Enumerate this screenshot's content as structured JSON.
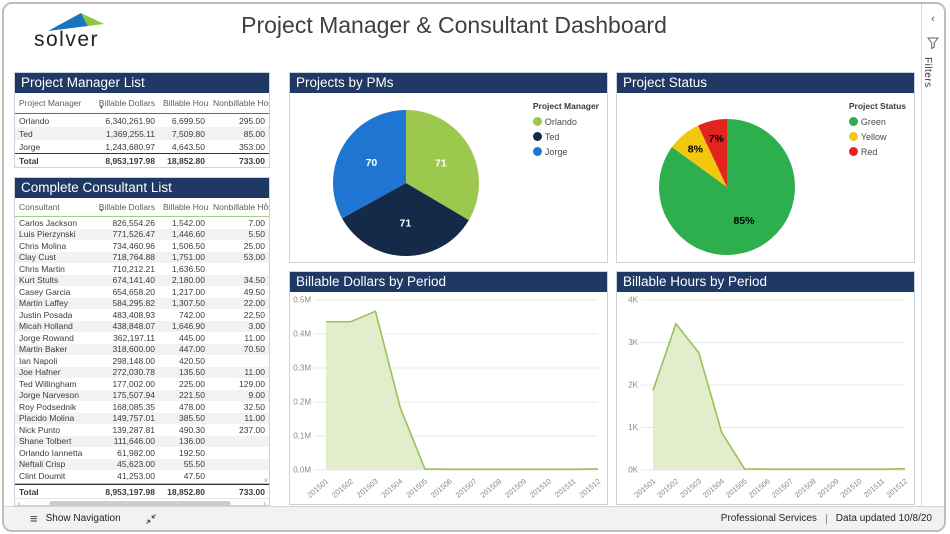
{
  "header": {
    "logo_text": "solver",
    "title": "Project Manager & Consultant Dashboard",
    "logo_colors": {
      "blue": "#1B75BC",
      "green": "#8DC63F"
    }
  },
  "icons": {
    "sort_desc": "▼",
    "scroll_up": "∧",
    "scroll_down": "∨",
    "scroll_left": "‹",
    "scroll_right": "›",
    "hamburger": "≡",
    "chevron_left": "‹"
  },
  "pm_list": {
    "title": "Project Manager List",
    "columns": [
      "Project Manager",
      "Billable Dollars",
      "Billable Hours",
      "Nonbillable Hours"
    ],
    "sort_column_index": 1,
    "rows": [
      [
        "Orlando",
        "6,340,261.90",
        "6,699.50",
        "295.00"
      ],
      [
        "Ted",
        "1,369,255.11",
        "7,509.80",
        "85.00"
      ],
      [
        "Jorge",
        "1,243,680.97",
        "4,643.50",
        "353.00"
      ]
    ],
    "total_row": [
      "Total",
      "8,953,197.98",
      "18,852.80",
      "733.00"
    ]
  },
  "consultant_list": {
    "title": "Complete Consultant List",
    "columns": [
      "Consultant",
      "Billable Dollars",
      "Billable Hours",
      "Nonbillable Hours"
    ],
    "sort_column_index": 1,
    "rows": [
      [
        "Carlos Jackson",
        "826,554.26",
        "1,542.00",
        "7.00"
      ],
      [
        "Luis Pierzynski",
        "771,526.47",
        "1,446.60",
        "5.50"
      ],
      [
        "Chris Molina",
        "734,460.96",
        "1,506.50",
        "25.00"
      ],
      [
        "Clay Cust",
        "718,764.88",
        "1,751.00",
        "53.00"
      ],
      [
        "Chris Martin",
        "710,212.21",
        "1,636.50",
        ""
      ],
      [
        "Kurt Stults",
        "674,141.40",
        "2,180.00",
        "34.50"
      ],
      [
        "Casey Garcia",
        "654,658.20",
        "1,217.00",
        "49.50"
      ],
      [
        "Martin Laffey",
        "584,295.82",
        "1,307.50",
        "22.00"
      ],
      [
        "Justin Posada",
        "483,408.93",
        "742.00",
        "22.50"
      ],
      [
        "Micah Holland",
        "438,848.07",
        "1,646.90",
        "3.00"
      ],
      [
        "Jorge Rowand",
        "362,197.11",
        "445.00",
        "11.00"
      ],
      [
        "Martin Baker",
        "318,600.00",
        "447.00",
        "70.50"
      ],
      [
        "Ian Napoli",
        "298,148.00",
        "420.50",
        ""
      ],
      [
        "Joe Hafner",
        "272,030.78",
        "135.50",
        "11.00"
      ],
      [
        "Ted Willingham",
        "177,002.00",
        "225.00",
        "129.00"
      ],
      [
        "Jorge Narveson",
        "175,507.94",
        "221.50",
        "9.00"
      ],
      [
        "Roy Podsednik",
        "168,085.35",
        "478.00",
        "32.50"
      ],
      [
        "Placido Molina",
        "149,757.01",
        "385.50",
        "11.00"
      ],
      [
        "Nick Punto",
        "139,287.81",
        "490.30",
        "237.00"
      ],
      [
        "Shane Tolbert",
        "111,646.00",
        "136.00",
        ""
      ],
      [
        "Orlando Iannetta",
        "61,982.00",
        "192.50",
        ""
      ],
      [
        "Neftali Crisp",
        "45,623.00",
        "55.50",
        ""
      ],
      [
        "Clint Doumit",
        "41,253.00",
        "47.50",
        ""
      ]
    ],
    "total_row": [
      "Total",
      "8,953,197.98",
      "18,852.80",
      "733.00"
    ]
  },
  "chart_data": [
    {
      "id": "projects_by_pms",
      "type": "pie",
      "title": "Projects by PMs",
      "legend_title": "Project Manager",
      "legend_position": "top-right",
      "label_color": "#ffffff",
      "slices": [
        {
          "name": "Orlando",
          "value": 71,
          "label": "71",
          "color": "#9DC84E"
        },
        {
          "name": "Ted",
          "value": 71,
          "label": "71",
          "color": "#152949"
        },
        {
          "name": "Jorge",
          "value": 70,
          "label": "70",
          "color": "#1E76D2"
        }
      ]
    },
    {
      "id": "project_status",
      "type": "pie",
      "title": "Project Status",
      "legend_title": "Project Status",
      "legend_position": "top-right",
      "label_color": "#000000",
      "slices": [
        {
          "name": "Green",
          "value": 85,
          "label": "85%",
          "color": "#2EAF4D"
        },
        {
          "name": "Yellow",
          "value": 8,
          "label": "8%",
          "color": "#F2C80F"
        },
        {
          "name": "Red",
          "value": 7,
          "label": "7%",
          "color": "#E2231E"
        }
      ]
    },
    {
      "id": "billable_dollars_by_period",
      "type": "area",
      "title": "Billable Dollars by Period",
      "categories": [
        "201501",
        "201502",
        "201503",
        "201504",
        "201505",
        "201506",
        "201507",
        "201508",
        "201509",
        "201510",
        "201511",
        "201512"
      ],
      "values": [
        436000,
        436000,
        467000,
        184000,
        3000,
        2000,
        2000,
        2000,
        2000,
        2000,
        2000,
        3000
      ],
      "ylim": [
        0,
        500000
      ],
      "ytick_values": [
        0,
        100000,
        200000,
        300000,
        400000,
        500000
      ],
      "ytick_labels": [
        "0.0M",
        "0.1M",
        "0.2M",
        "0.3M",
        "0.4M",
        "0.5M"
      ],
      "grid": true,
      "line_color": "#9CC158",
      "fill_color": "#DCEAC2"
    },
    {
      "id": "billable_hours_by_period",
      "type": "area",
      "title": "Billable Hours by Period",
      "categories": [
        "201501",
        "201502",
        "201503",
        "201504",
        "201505",
        "201506",
        "201507",
        "201508",
        "201509",
        "201510",
        "201511",
        "201512"
      ],
      "values": [
        1870,
        3440,
        2760,
        880,
        25,
        20,
        20,
        20,
        20,
        20,
        20,
        30
      ],
      "ylim": [
        0,
        4000
      ],
      "ytick_values": [
        0,
        1000,
        2000,
        3000,
        4000
      ],
      "ytick_labels": [
        "0K",
        "1K",
        "2K",
        "3K",
        "4K"
      ],
      "grid": true,
      "line_color": "#9CC158",
      "fill_color": "#DCEAC2"
    }
  ],
  "filters_panel": {
    "label": "Filters"
  },
  "footer": {
    "show_navigation_label": "Show Navigation",
    "region_label": "Professional Services",
    "separator": "|",
    "data_updated_label": "Data updated 10/8/20"
  },
  "colors": {
    "panel_header_bg": "#1F3864",
    "accent_green_line": "#a9cf7e",
    "stripe": "#f2f2f2"
  }
}
